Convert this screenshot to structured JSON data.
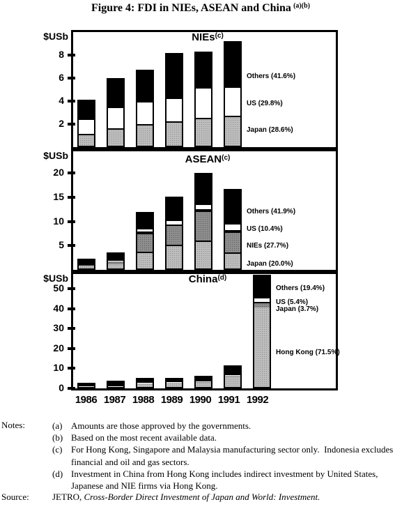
{
  "figure": {
    "title": "Figure 4: FDI in NIEs, ASEAN and China",
    "title_superscript": "(a)(b)"
  },
  "years": [
    "1986",
    "1987",
    "1988",
    "1989",
    "1990",
    "1991",
    "1992"
  ],
  "colors": {
    "black": "#000000",
    "white": "#ffffff",
    "light_gray": "#bdbdbd",
    "dark_gray": "#8e8e8e"
  },
  "chart_data": [
    {
      "type": "bar",
      "stacked": true,
      "title": "NIEs",
      "title_superscript": "(c)",
      "ylabel": "$USb",
      "ylim": [
        0,
        10
      ],
      "yticks": [
        2,
        4,
        6,
        8
      ],
      "categories": [
        "1986",
        "1987",
        "1988",
        "1989",
        "1990",
        "1991",
        "1992"
      ],
      "series": [
        {
          "name": "Japan",
          "color": "light_gray",
          "values": [
            1.0,
            1.5,
            1.9,
            2.1,
            2.4,
            2.6,
            null
          ]
        },
        {
          "name": "US",
          "color": "white",
          "values": [
            1.5,
            2.0,
            2.1,
            2.2,
            2.8,
            2.7,
            null
          ]
        },
        {
          "name": "Others",
          "color": "black",
          "values": [
            1.6,
            2.5,
            2.7,
            3.9,
            3.1,
            3.9,
            null
          ]
        }
      ],
      "totals": [
        4.1,
        6.0,
        6.7,
        8.2,
        8.3,
        9.2,
        null
      ],
      "segment_labels": [
        {
          "text": "Others (41.6%)"
        },
        {
          "text": "US (29.8%)"
        },
        {
          "text": "Japan (28.6%)"
        }
      ]
    },
    {
      "type": "bar",
      "stacked": true,
      "title": "ASEAN",
      "title_superscript": "(c)",
      "ylabel": "$USb",
      "ylim": [
        0,
        24.5
      ],
      "yticks": [
        5,
        10,
        15,
        20
      ],
      "categories": [
        "1986",
        "1987",
        "1988",
        "1989",
        "1990",
        "1991",
        "1992"
      ],
      "series": [
        {
          "name": "Japan",
          "color": "light_gray",
          "values": [
            0.6,
            1.1,
            3.4,
            4.9,
            5.7,
            3.3,
            null
          ]
        },
        {
          "name": "NIEs",
          "color": "dark_gray",
          "values": [
            0.2,
            0.7,
            4.3,
            4.5,
            6.6,
            4.6,
            null
          ]
        },
        {
          "name": "US",
          "color": "white",
          "values": [
            0.1,
            0.1,
            1.0,
            0.7,
            1.4,
            1.7,
            null
          ]
        },
        {
          "name": "Others",
          "color": "black",
          "values": [
            1.4,
            1.7,
            3.3,
            5.0,
            6.4,
            7.1,
            null
          ]
        }
      ],
      "totals": [
        2.3,
        3.6,
        12.0,
        15.1,
        20.1,
        16.7,
        null
      ],
      "segment_labels": [
        {
          "text": "Others (41.9%)"
        },
        {
          "text": "US (10.4%)"
        },
        {
          "text": "NIEs (27.7%)"
        },
        {
          "text": "Japan (20.0%)"
        }
      ]
    },
    {
      "type": "bar",
      "stacked": true,
      "title": "China",
      "title_superscript": "(d)",
      "ylabel": "$USb",
      "ylim": [
        0,
        57.5
      ],
      "yticks": [
        0,
        10,
        20,
        30,
        40,
        50
      ],
      "categories": [
        "1986",
        "1987",
        "1988",
        "1989",
        "1990",
        "1991",
        "1992"
      ],
      "series": [
        {
          "name": "Hong Kong",
          "color": "light_gray",
          "values": [
            0.8,
            1.0,
            2.5,
            2.8,
            3.1,
            6.0,
            40.8
          ]
        },
        {
          "name": "Japan",
          "color": "dark_gray",
          "values": [
            0.1,
            0.1,
            0.2,
            0.2,
            0.2,
            0.3,
            2.1
          ]
        },
        {
          "name": "US",
          "color": "white",
          "values": [
            0.1,
            0.1,
            0.2,
            0.2,
            0.2,
            0.3,
            3.1
          ]
        },
        {
          "name": "Others",
          "color": "black",
          "values": [
            1.9,
            2.5,
            2.2,
            2.1,
            2.7,
            4.8,
            11.0
          ]
        }
      ],
      "totals": [
        2.9,
        3.7,
        5.1,
        5.3,
        6.2,
        11.4,
        57.0
      ],
      "segment_labels": [
        {
          "text": "Others (19.4%)"
        },
        {
          "text": "US (5.4%)"
        },
        {
          "text": "Japan (3.7%)"
        },
        {
          "text": "Hong Kong (71.5%)"
        }
      ]
    }
  ],
  "notes": {
    "label": "Notes:",
    "items": [
      {
        "tag": "(a)",
        "text": "Amounts are those approved by the governments."
      },
      {
        "tag": "(b)",
        "text": "Based on the most recent available data."
      },
      {
        "tag": "(c)",
        "text": "For Hong Kong, Singapore and Malaysia manufacturing sector only.  Indonesia excludes financial and oil and gas sectors."
      },
      {
        "tag": "(d)",
        "text": "Investment in China from Hong Kong includes indirect investment by United States, Japanese and NIE firms via Hong Kong."
      }
    ]
  },
  "source": {
    "label": "Source:",
    "prefix": "JETRO, ",
    "title": "Cross-Border Direct Investment of Japan and World: Investment."
  }
}
